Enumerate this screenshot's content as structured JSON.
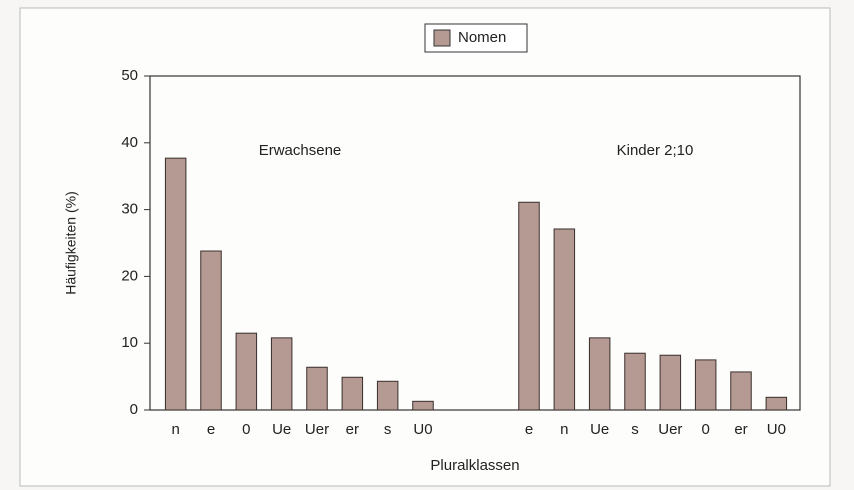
{
  "chart_data": {
    "type": "bar",
    "legend": "Nomen",
    "ylabel": "Häufigkeiten (%)",
    "xlabel": "Pluralklassen",
    "annotations": [
      "Erwachsene",
      "Kinder 2;10"
    ],
    "categories": [
      "n",
      "e",
      "0",
      "Ue",
      "Uer",
      "er",
      "s",
      "U0",
      null,
      null,
      "e",
      "n",
      "Ue",
      "s",
      "Uer",
      "0",
      "er",
      "U0"
    ],
    "values": [
      37.7,
      23.8,
      11.5,
      10.8,
      6.4,
      4.9,
      4.3,
      1.3,
      null,
      null,
      31.1,
      27.1,
      10.8,
      8.5,
      8.2,
      7.5,
      5.7,
      1.9
    ],
    "color": "#b59a93",
    "ylim": [
      0,
      50
    ],
    "yticks": [
      0,
      10,
      20,
      30,
      40,
      50
    ],
    "grid": false
  }
}
